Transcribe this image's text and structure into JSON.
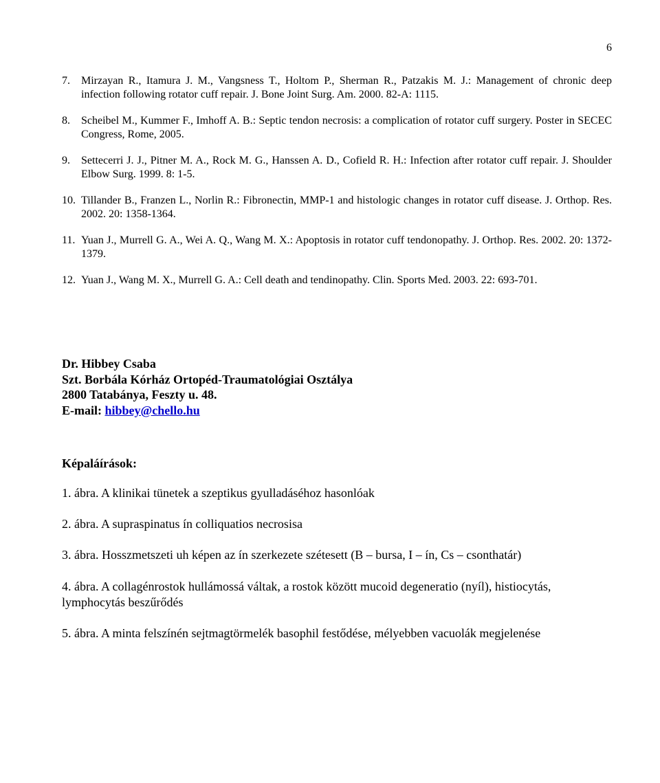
{
  "page_number": "6",
  "references": [
    {
      "num": "7.",
      "text": "Mirzayan R., Itamura J. M., Vangsness T., Holtom P., Sherman R., Patzakis M. J.: Management of chronic deep infection following rotator cuff repair. J. Bone Joint Surg. Am. 2000. 82-A: 1115."
    },
    {
      "num": "8.",
      "text": "Scheibel M., Kummer F., Imhoff A. B.: Septic tendon necrosis: a complication of rotator cuff surgery. Poster in SECEC Congress, Rome, 2005."
    },
    {
      "num": "9.",
      "text": "Settecerri J. J., Pitner M. A., Rock M. G., Hanssen A. D., Cofield R. H.: Infection after rotator cuff repair. J. Shoulder Elbow Surg. 1999. 8: 1-5."
    },
    {
      "num": "10.",
      "text": "Tillander B., Franzen L., Norlin R.: Fibronectin, MMP-1 and histologic changes in rotator cuff disease. J. Orthop. Res. 2002. 20: 1358-1364."
    },
    {
      "num": "11.",
      "text": "Yuan J., Murrell G. A., Wei A. Q., Wang M. X.: Apoptosis in rotator cuff tendonopathy. J. Orthop. Res. 2002. 20: 1372-1379."
    },
    {
      "num": "12.",
      "text": "Yuan J., Wang M. X., Murrell G. A.: Cell death and tendinopathy. Clin. Sports Med. 2003. 22: 693-701."
    }
  ],
  "author": {
    "name": "Dr. Hibbey Csaba",
    "institution": "Szt. Borbála Kórház Ortopéd-Traumatológiai Osztálya",
    "address": "2800 Tatabánya, Feszty u. 48.",
    "email_label": "E-mail: ",
    "email": "hibbey@chello.hu"
  },
  "figures": {
    "heading": "Képaláírások:",
    "items": [
      "1. ábra. A klinikai tünetek a szeptikus gyulladáséhoz hasonlóak",
      "2. ábra. A supraspinatus ín colliquatios necrosisa",
      "3. ábra. Hosszmetszeti uh képen az ín szerkezete szétesett (B – bursa, I – ín, Cs – csonthatár)",
      "4. ábra. A collagénrostok hullámossá váltak, a rostok között mucoid degeneratio (nyíl), histiocytás, lymphocytás beszűrődés",
      "5. ábra. A minta felszínén sejtmagtörmelék basophil festődése, mélyebben vacuolák megjelenése"
    ]
  }
}
